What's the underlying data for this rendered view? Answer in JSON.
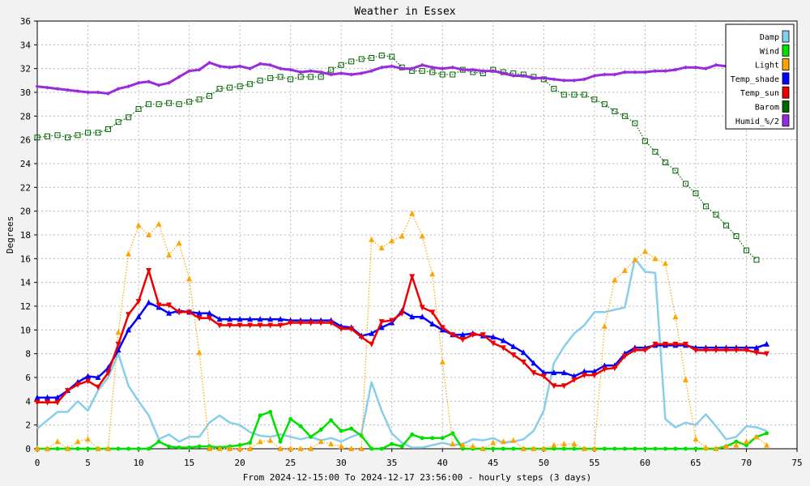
{
  "chart_data": {
    "type": "line",
    "title": "Weather in Essex",
    "xlabel": "From 2024-12-15:00 To 2024-12-17 23:56:00 - hourly steps (3 days)",
    "ylabel": "Degrees",
    "xlim": [
      0,
      75
    ],
    "ylim": [
      0,
      36
    ],
    "x_ticks": [
      "0",
      "5",
      "10",
      "15",
      "20",
      "25",
      "30",
      "35",
      "40",
      "45",
      "50",
      "55",
      "60",
      "65",
      "70",
      "75"
    ],
    "y_ticks": [
      "0",
      "2",
      "4",
      "6",
      "8",
      "10",
      "12",
      "14",
      "16",
      "18",
      "20",
      "22",
      "24",
      "26",
      "28",
      "30",
      "32",
      "34",
      "36"
    ],
    "grid": true,
    "legend_position": "top-right",
    "series": [
      {
        "name": "Damp",
        "color": "#87ceeb",
        "marker": "none",
        "dotted": false,
        "width": 2.5,
        "values": [
          1.7,
          2.4,
          3.1,
          3.1,
          4.0,
          3.2,
          4.9,
          6.0,
          8.0,
          5.3,
          4.0,
          2.8,
          0.8,
          1.2,
          0.6,
          1.0,
          1.0,
          2.2,
          2.8,
          2.2,
          2.0,
          1.4,
          1.1,
          1.0,
          1.2,
          1.0,
          0.8,
          1.0,
          0.7,
          0.9,
          0.6,
          1.0,
          1.3,
          5.6,
          3.2,
          1.3,
          0.5,
          0.1,
          0.1,
          0.3,
          0.5,
          0.3,
          0.4,
          0.8,
          0.7,
          0.9,
          0.5,
          0.6,
          0.8,
          1.5,
          3.2,
          7.2,
          8.6,
          9.7,
          10.4,
          11.5,
          11.5,
          11.7,
          11.9,
          16.0,
          14.9,
          14.8,
          2.5,
          1.8,
          2.2,
          2.0,
          2.9,
          1.9,
          0.8,
          1.0,
          1.9,
          1.8,
          1.5
        ]
      },
      {
        "name": "Wind",
        "color": "#00e000",
        "marker": "circle",
        "dotted": false,
        "width": 2.5,
        "values": [
          0,
          0,
          0,
          0,
          0,
          0,
          0,
          0,
          0,
          0,
          0,
          0,
          0.6,
          0.2,
          0.1,
          0.1,
          0.2,
          0.2,
          0.1,
          0.2,
          0.3,
          0.5,
          2.8,
          3.1,
          0.6,
          2.5,
          1.9,
          1.0,
          1.6,
          2.4,
          1.5,
          1.7,
          1.1,
          0,
          0,
          0.4,
          0.2,
          1.2,
          0.9,
          0.9,
          0.9,
          1.3,
          0,
          0,
          0,
          0,
          0,
          0,
          0,
          0,
          0,
          0,
          0,
          0,
          0,
          0,
          0,
          0,
          0,
          0,
          0,
          0,
          0,
          0,
          0,
          0,
          0,
          0,
          0.2,
          0.6,
          0.3,
          1.0,
          1.3
        ]
      },
      {
        "name": "Light",
        "color": "#ffa500",
        "marker": "triangle-up",
        "dotted": true,
        "width": 1.2,
        "values": [
          0,
          0,
          0.6,
          0,
          0.6,
          0.8,
          0,
          0,
          9.8,
          16.4,
          18.8,
          18.0,
          18.9,
          16.3,
          17.3,
          14.3,
          8.1,
          0,
          0,
          0,
          0,
          0,
          0.6,
          0.7,
          0,
          0,
          0,
          0,
          0.6,
          0.4,
          0.2,
          0,
          0,
          17.6,
          16.9,
          17.5,
          17.9,
          19.8,
          17.9,
          14.7,
          7.3,
          0.4,
          0.3,
          0.2,
          0,
          0.5,
          0.6,
          0.7,
          0,
          0,
          0,
          0.3,
          0.4,
          0.4,
          0,
          0,
          10.3,
          14.2,
          15.0,
          15.9,
          16.6,
          16.0,
          15.6,
          11.1,
          5.8,
          0.8,
          0.1,
          0,
          0.2,
          0.3,
          0.6,
          1.0,
          0.3
        ]
      },
      {
        "name": "Temp_shade",
        "color": "#0000ff",
        "marker": "triangle-up",
        "dotted": false,
        "width": 2.5,
        "values": [
          4.3,
          4.3,
          4.3,
          4.9,
          5.6,
          6.1,
          6.0,
          6.8,
          8.3,
          10.0,
          11.1,
          12.3,
          11.9,
          11.4,
          11.6,
          11.5,
          11.4,
          11.4,
          10.9,
          10.9,
          10.9,
          10.9,
          10.9,
          10.9,
          10.9,
          10.8,
          10.8,
          10.8,
          10.8,
          10.8,
          10.3,
          10.2,
          9.5,
          9.7,
          10.2,
          10.6,
          11.6,
          11.1,
          11.1,
          10.5,
          10.0,
          9.6,
          9.6,
          9.7,
          9.5,
          9.4,
          9.1,
          8.6,
          8.1,
          7.2,
          6.4,
          6.4,
          6.4,
          6.1,
          6.5,
          6.5,
          7.0,
          7.0,
          8.0,
          8.5,
          8.5,
          8.7,
          8.7,
          8.7,
          8.7,
          8.5,
          8.5,
          8.5,
          8.5,
          8.5,
          8.5,
          8.5,
          8.8
        ]
      },
      {
        "name": "Temp_sun",
        "color": "#ee0000",
        "marker": "triangle-down",
        "dotted": false,
        "width": 2.5,
        "values": [
          3.9,
          3.9,
          3.9,
          4.9,
          5.4,
          5.7,
          5.2,
          6.4,
          8.8,
          11.3,
          12.4,
          15.0,
          12.1,
          12.1,
          11.5,
          11.5,
          11.0,
          11.0,
          10.4,
          10.4,
          10.4,
          10.4,
          10.4,
          10.4,
          10.4,
          10.6,
          10.6,
          10.6,
          10.6,
          10.6,
          10.1,
          10.1,
          9.4,
          8.8,
          10.7,
          10.8,
          11.4,
          14.5,
          11.9,
          11.5,
          10.2,
          9.6,
          9.2,
          9.6,
          9.6,
          8.9,
          8.5,
          7.9,
          7.3,
          6.4,
          6.1,
          5.3,
          5.3,
          5.8,
          6.2,
          6.2,
          6.7,
          6.8,
          7.8,
          8.3,
          8.3,
          8.8,
          8.8,
          8.8,
          8.8,
          8.3,
          8.3,
          8.3,
          8.3,
          8.3,
          8.3,
          8.1,
          8.0
        ]
      },
      {
        "name": "Barom",
        "color": "#006400",
        "marker": "square",
        "dotted": true,
        "width": 1.2,
        "values": [
          26.2,
          26.3,
          26.4,
          26.2,
          26.4,
          26.6,
          26.6,
          26.9,
          27.5,
          27.9,
          28.6,
          29.0,
          29.0,
          29.1,
          29.0,
          29.2,
          29.4,
          29.7,
          30.3,
          30.4,
          30.5,
          30.7,
          31.0,
          31.2,
          31.3,
          31.1,
          31.3,
          31.3,
          31.3,
          31.9,
          32.3,
          32.6,
          32.8,
          32.9,
          33.1,
          33.0,
          32.1,
          31.8,
          31.8,
          31.7,
          31.5,
          31.5,
          31.9,
          31.7,
          31.6,
          31.9,
          31.7,
          31.6,
          31.5,
          31.3,
          31.1,
          30.3,
          29.8,
          29.8,
          29.8,
          29.4,
          29.0,
          28.4,
          28.0,
          27.4,
          25.9,
          25.0,
          24.1,
          23.4,
          22.3,
          21.5,
          20.4,
          19.7,
          18.8,
          17.9,
          16.7,
          15.9
        ]
      },
      {
        "name": "Humid_%/2",
        "color": "#9a2bdc",
        "marker": "diamond",
        "dotted": false,
        "width": 3,
        "values": [
          30.5,
          30.4,
          30.3,
          30.2,
          30.1,
          30.0,
          30.0,
          29.9,
          30.3,
          30.5,
          30.8,
          30.9,
          30.6,
          30.8,
          31.3,
          31.8,
          31.9,
          32.5,
          32.2,
          32.1,
          32.2,
          32.0,
          32.4,
          32.3,
          32.0,
          31.9,
          31.7,
          31.8,
          31.7,
          31.5,
          31.6,
          31.5,
          31.6,
          31.8,
          32.1,
          32.2,
          32.0,
          32.0,
          32.3,
          32.1,
          32.0,
          32.1,
          31.9,
          31.9,
          31.8,
          31.8,
          31.6,
          31.4,
          31.4,
          31.2,
          31.2,
          31.1,
          31.0,
          31.0,
          31.1,
          31.4,
          31.5,
          31.5,
          31.7,
          31.7,
          31.7,
          31.8,
          31.8,
          31.9,
          32.1,
          32.1,
          32.0,
          32.3,
          32.2,
          32.0
        ]
      }
    ]
  }
}
